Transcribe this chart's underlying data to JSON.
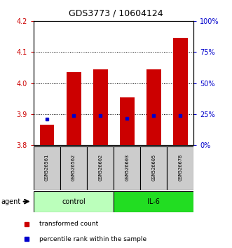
{
  "title": "GDS3773 / 10604124",
  "samples": [
    "GSM526561",
    "GSM526562",
    "GSM526602",
    "GSM526603",
    "GSM526605",
    "GSM526678"
  ],
  "red_values": [
    3.865,
    4.035,
    4.045,
    3.955,
    4.045,
    4.145
  ],
  "blue_values": [
    3.883,
    3.895,
    3.895,
    3.885,
    3.895,
    3.895
  ],
  "ylim_min": 3.8,
  "ylim_max": 4.2,
  "yticks_left": [
    3.8,
    3.9,
    4.0,
    4.1,
    4.2
  ],
  "yticks_right_labels": [
    "0%",
    "25%",
    "50%",
    "75%",
    "100%"
  ],
  "yticks_right_pct": [
    0,
    25,
    50,
    75,
    100
  ],
  "bar_color": "#cc0000",
  "dot_color": "#0000cc",
  "bar_width": 0.55,
  "group_labels": [
    "control",
    "IL-6"
  ],
  "group_ranges": [
    [
      0,
      3
    ],
    [
      3,
      6
    ]
  ],
  "group_colors_light": "#bbffbb",
  "group_colors_dark": "#22dd22",
  "agent_label": "agent",
  "legend_red": "transformed count",
  "legend_blue": "percentile rank within the sample",
  "tick_color_left": "#cc0000",
  "tick_color_right": "#0000cc",
  "title_fontsize": 9,
  "tick_fontsize": 7,
  "sample_fontsize": 5,
  "group_fontsize": 7,
  "legend_fontsize": 6.5,
  "agent_fontsize": 7
}
